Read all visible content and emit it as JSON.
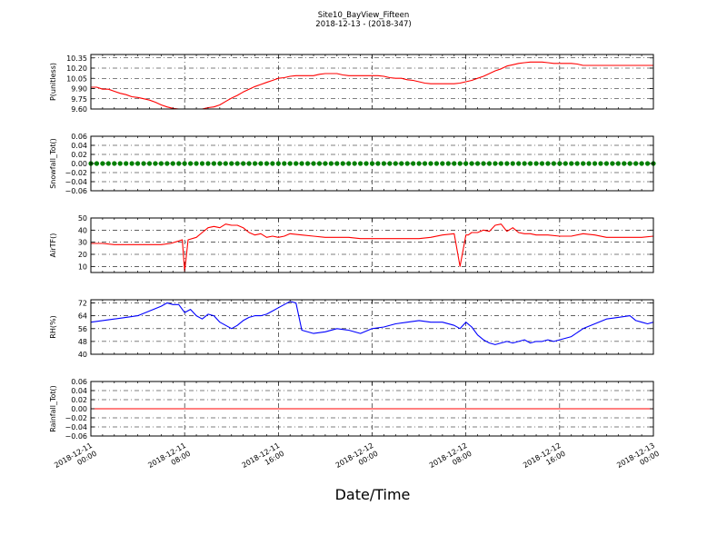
{
  "figure": {
    "title": "Site10_BayView_Fifteen",
    "subtitle": "2018-12-13 - (2018-347)",
    "xlabel": "Date/Time"
  },
  "chart_data": [
    {
      "type": "line",
      "ylabel": "P(unitless)",
      "ylim": [
        9.6,
        10.4
      ],
      "yticks": [
        9.6,
        9.75,
        9.9,
        10.05,
        10.2,
        10.35
      ],
      "ytick_labels": [
        "9.60",
        "9.75",
        "9.90",
        "10.05",
        "10.20",
        "10.35"
      ],
      "grid": true,
      "series": [
        {
          "color": "#ff0000",
          "x": [
            0,
            0.5,
            1,
            1.5,
            2,
            2.5,
            3,
            3.5,
            4,
            4.5,
            5,
            5.5,
            6,
            6.5,
            7,
            7.5,
            8,
            8.5,
            9,
            9.5,
            10,
            10.5,
            11,
            11.5,
            12,
            12.5,
            13,
            13.5,
            14,
            14.5,
            15,
            15.5,
            16,
            16.5,
            17,
            17.5,
            18,
            18.5,
            19,
            19.5,
            20,
            20.5,
            21,
            21.5,
            22,
            22.5,
            23,
            23.5,
            24,
            24.5,
            25,
            25.5,
            26,
            26.5,
            27,
            27.5,
            28,
            28.5,
            29,
            29.5,
            30,
            30.5,
            31,
            31.5,
            32,
            32.5,
            33,
            33.5,
            34,
            34.5,
            35,
            35.5,
            36,
            36.5,
            37,
            37.5,
            38,
            38.5,
            39,
            39.5,
            40,
            40.5,
            41,
            41.5,
            42,
            42.5,
            43,
            43.5,
            44,
            44.5,
            45,
            45.5,
            46,
            46.5,
            47,
            47.5,
            48
          ],
          "values": [
            9.92,
            9.92,
            9.89,
            9.89,
            9.86,
            9.83,
            9.81,
            9.78,
            9.77,
            9.75,
            9.73,
            9.7,
            9.66,
            9.63,
            9.61,
            9.6,
            9.6,
            9.6,
            9.6,
            9.6,
            9.62,
            9.63,
            9.66,
            9.71,
            9.76,
            9.8,
            9.85,
            9.89,
            9.93,
            9.96,
            9.99,
            10.02,
            10.05,
            10.06,
            10.08,
            10.09,
            10.09,
            10.09,
            10.09,
            10.11,
            10.12,
            10.12,
            10.12,
            10.1,
            10.09,
            10.09,
            10.09,
            10.09,
            10.09,
            10.09,
            10.08,
            10.06,
            10.05,
            10.05,
            10.03,
            10.02,
            10.0,
            9.98,
            9.97,
            9.97,
            9.97,
            9.97,
            9.97,
            9.98,
            10.0,
            10.02,
            10.05,
            10.08,
            10.12,
            10.16,
            10.19,
            10.23,
            10.25,
            10.27,
            10.28,
            10.29,
            10.29,
            10.29,
            10.28,
            10.27,
            10.27,
            10.27,
            10.27,
            10.26,
            10.24,
            10.24,
            10.24,
            10.24,
            10.24,
            10.24,
            10.24,
            10.24,
            10.24,
            10.24,
            10.24,
            10.24,
            10.24
          ]
        }
      ]
    },
    {
      "type": "scatter",
      "ylabel": "Snowfall_Tot()",
      "ylim": [
        -0.06,
        0.06
      ],
      "yticks": [
        -0.06,
        -0.04,
        -0.02,
        0.0,
        0.02,
        0.04,
        0.06
      ],
      "ytick_labels": [
        "−0.06",
        "−0.04",
        "−0.02",
        "0.00",
        "0.02",
        "0.04",
        "0.06"
      ],
      "grid": true,
      "series": [
        {
          "color": "#008000",
          "x": [
            0,
            0.5,
            1,
            1.5,
            2,
            2.5,
            3,
            3.5,
            4,
            4.5,
            5,
            5.5,
            6,
            6.5,
            7,
            7.5,
            8,
            8.5,
            9,
            9.5,
            10,
            10.5,
            11,
            11.5,
            12,
            12.5,
            13,
            13.5,
            14,
            14.5,
            15,
            15.5,
            16,
            16.5,
            17,
            17.5,
            18,
            18.5,
            19,
            19.5,
            20,
            20.5,
            21,
            21.5,
            22,
            22.5,
            23,
            23.5,
            24,
            24.5,
            25,
            25.5,
            26,
            26.5,
            27,
            27.5,
            28,
            28.5,
            29,
            29.5,
            30,
            30.5,
            31,
            31.5,
            32,
            32.5,
            33,
            33.5,
            34,
            34.5,
            35,
            35.5,
            36,
            36.5,
            37,
            37.5,
            38,
            38.5,
            39,
            39.5,
            40,
            40.5,
            41,
            41.5,
            42,
            42.5,
            43,
            43.5,
            44,
            44.5,
            45,
            45.5,
            46,
            46.5,
            47,
            47.5,
            48
          ],
          "values": [
            0,
            0,
            0,
            0,
            0,
            0,
            0,
            0,
            0,
            0,
            0,
            0,
            0,
            0,
            0,
            0,
            0,
            0,
            0,
            0,
            0,
            0,
            0,
            0,
            0,
            0,
            0,
            0,
            0,
            0,
            0,
            0,
            0,
            0,
            0,
            0,
            0,
            0,
            0,
            0,
            0,
            0,
            0,
            0,
            0,
            0,
            0,
            0,
            0,
            0,
            0,
            0,
            0,
            0,
            0,
            0,
            0,
            0,
            0,
            0,
            0,
            0,
            0,
            0,
            0,
            0,
            0,
            0,
            0,
            0,
            0,
            0,
            0,
            0,
            0,
            0,
            0,
            0,
            0,
            0,
            0,
            0,
            0,
            0,
            0,
            0,
            0,
            0,
            0,
            0,
            0,
            0,
            0,
            0,
            0,
            0,
            0
          ]
        }
      ]
    },
    {
      "type": "line",
      "ylabel": "AirTF()",
      "ylim": [
        5,
        50
      ],
      "yticks": [
        10,
        20,
        30,
        40,
        50
      ],
      "ytick_labels": [
        "10",
        "20",
        "30",
        "40",
        "50"
      ],
      "grid": true,
      "series": [
        {
          "color": "#ff0000",
          "x": [
            0,
            1,
            2,
            3,
            4,
            5,
            6,
            6.8,
            7.5,
            7.8,
            8.0,
            8.3,
            9,
            9.5,
            10,
            10.5,
            11,
            11.5,
            12,
            12.5,
            13,
            13.5,
            14,
            14.5,
            15,
            15.5,
            16,
            16.5,
            17,
            18,
            19,
            20,
            21,
            22,
            23,
            24,
            25,
            26,
            27,
            28,
            29,
            30,
            31,
            31.5,
            32,
            32.2,
            32.5,
            33,
            33.5,
            34,
            34.5,
            35,
            35.5,
            36,
            36.5,
            37,
            37.5,
            38,
            39,
            40,
            41,
            42,
            43,
            44,
            45,
            46,
            47,
            48
          ],
          "values": [
            29,
            29,
            28,
            28,
            28,
            28,
            28,
            29,
            31,
            32,
            6,
            32,
            34,
            38,
            42,
            43,
            42,
            45,
            44,
            44,
            42,
            38,
            36,
            37,
            34,
            35,
            34,
            35,
            37,
            36,
            35,
            34,
            34,
            34,
            33,
            33,
            33,
            33,
            33,
            33,
            34,
            36,
            37,
            10,
            36,
            36,
            38,
            38,
            40,
            39,
            44,
            45,
            39,
            42,
            38,
            37,
            37,
            36,
            36,
            35,
            35,
            37,
            36,
            34,
            34,
            34,
            34,
            35
          ]
        }
      ]
    },
    {
      "type": "line",
      "ylabel": "RH(%)",
      "ylim": [
        40,
        74
      ],
      "yticks": [
        40,
        48,
        56,
        64,
        72
      ],
      "ytick_labels": [
        "40",
        "48",
        "56",
        "64",
        "72"
      ],
      "grid": true,
      "series": [
        {
          "color": "#0000ff",
          "x": [
            0,
            1,
            2,
            3,
            4,
            5,
            6,
            6.5,
            7,
            7.5,
            8,
            8.5,
            9,
            9.5,
            10,
            10.5,
            11,
            11.5,
            12,
            12.5,
            13,
            13.5,
            14,
            14.5,
            15,
            15.5,
            16,
            16.5,
            17,
            17.5,
            18,
            19,
            20,
            21,
            22,
            23,
            24,
            25,
            26,
            27,
            28,
            29,
            30,
            31,
            31.5,
            32,
            32.5,
            33,
            33.5,
            34,
            34.5,
            35,
            35.5,
            36,
            36.5,
            37,
            37.5,
            38,
            38.5,
            39,
            39.5,
            40,
            41,
            42,
            43,
            44,
            45,
            46,
            46.5,
            47,
            47.5,
            48
          ],
          "values": [
            60,
            61,
            62,
            63,
            64,
            67,
            70,
            72,
            71,
            71,
            66,
            68,
            64,
            62,
            65,
            64,
            60,
            58,
            56,
            58,
            61,
            63,
            64,
            64,
            65,
            67,
            69,
            71,
            73,
            72,
            55,
            53,
            54,
            56,
            55,
            53,
            56,
            57,
            59,
            60,
            61,
            60,
            60,
            58,
            56,
            60,
            57,
            52,
            49,
            47,
            46,
            47,
            48,
            47,
            48,
            49,
            47,
            48,
            48,
            49,
            48,
            49,
            51,
            56,
            59,
            62,
            63,
            64,
            61,
            60,
            59,
            60
          ]
        }
      ]
    },
    {
      "type": "line",
      "ylabel": "Rainfall_Tot()",
      "ylim": [
        -0.06,
        0.06
      ],
      "yticks": [
        -0.06,
        -0.04,
        -0.02,
        0.0,
        0.02,
        0.04,
        0.06
      ],
      "ytick_labels": [
        "−0.06",
        "−0.04",
        "−0.02",
        "0.00",
        "0.02",
        "0.04",
        "0.06"
      ],
      "grid": true,
      "series": [
        {
          "color": "#ff0000",
          "x": [
            0,
            48
          ],
          "values": [
            0,
            0
          ]
        }
      ]
    }
  ],
  "x_axis": {
    "xlim": [
      0,
      48
    ],
    "ticks": [
      0,
      8,
      16,
      24,
      32,
      40,
      48
    ],
    "tick_labels": [
      [
        "2018-12-11",
        "00:00"
      ],
      [
        "2018-12-11",
        "08:00"
      ],
      [
        "2018-12-11",
        "16:00"
      ],
      [
        "2018-12-12",
        "00:00"
      ],
      [
        "2018-12-12",
        "08:00"
      ],
      [
        "2018-12-12",
        "16:00"
      ],
      [
        "2018-12-13",
        "00:00"
      ]
    ]
  }
}
